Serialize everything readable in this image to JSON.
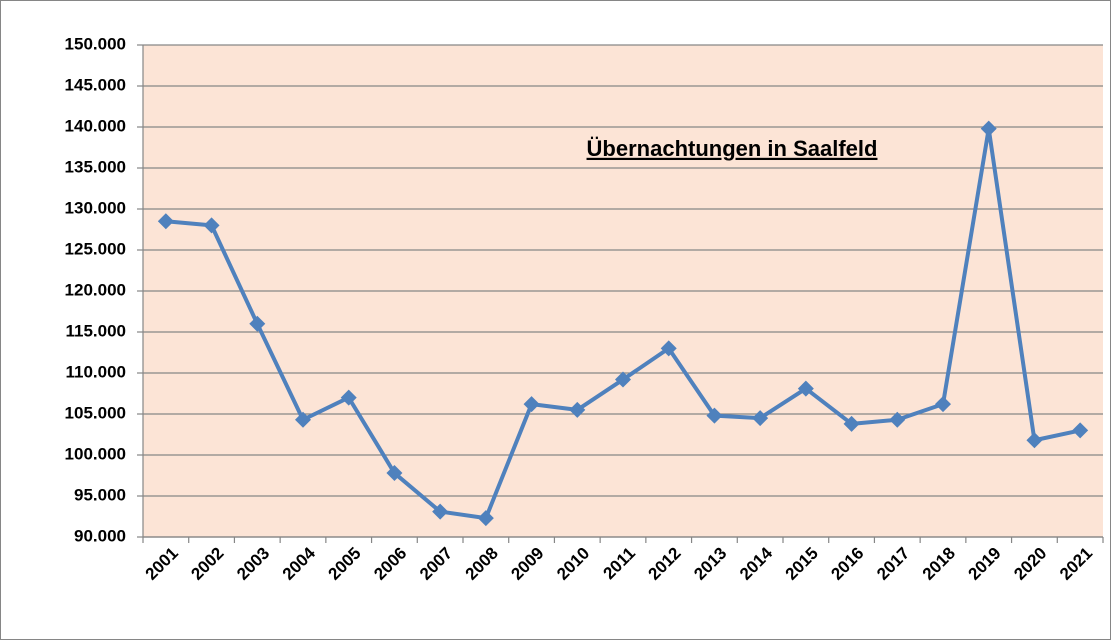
{
  "chart_data": {
    "type": "line",
    "title": "Übernachtungen in Saalfeld",
    "categories": [
      "2001",
      "2002",
      "2003",
      "2004",
      "2005",
      "2006",
      "2007",
      "2008",
      "2009",
      "2010",
      "2011",
      "2012",
      "2013",
      "2014",
      "2015",
      "2016",
      "2017",
      "2018",
      "2019",
      "2020",
      "2021"
    ],
    "series": [
      {
        "name": "Übernachtungen",
        "color": "#4f81bd",
        "values": [
          128500,
          128000,
          116000,
          104300,
          107000,
          97800,
          93100,
          92300,
          106200,
          105500,
          109200,
          113000,
          104800,
          104500,
          108100,
          103800,
          104300,
          106200,
          139800,
          101800,
          103000
        ]
      }
    ],
    "ylim": [
      90000,
      150000
    ],
    "yticks": [
      {
        "value": 90000,
        "label": "90.000"
      },
      {
        "value": 95000,
        "label": "95.000"
      },
      {
        "value": 100000,
        "label": "100.000"
      },
      {
        "value": 105000,
        "label": "105.000"
      },
      {
        "value": 110000,
        "label": "110.000"
      },
      {
        "value": 115000,
        "label": "115.000"
      },
      {
        "value": 120000,
        "label": "120.000"
      },
      {
        "value": 125000,
        "label": "125.000"
      },
      {
        "value": 130000,
        "label": "130.000"
      },
      {
        "value": 135000,
        "label": "135.000"
      },
      {
        "value": 140000,
        "label": "140.000"
      },
      {
        "value": 145000,
        "label": "145.000"
      },
      {
        "value": 150000,
        "label": "150.000"
      }
    ],
    "grid": true,
    "background": "#fce4d6"
  }
}
